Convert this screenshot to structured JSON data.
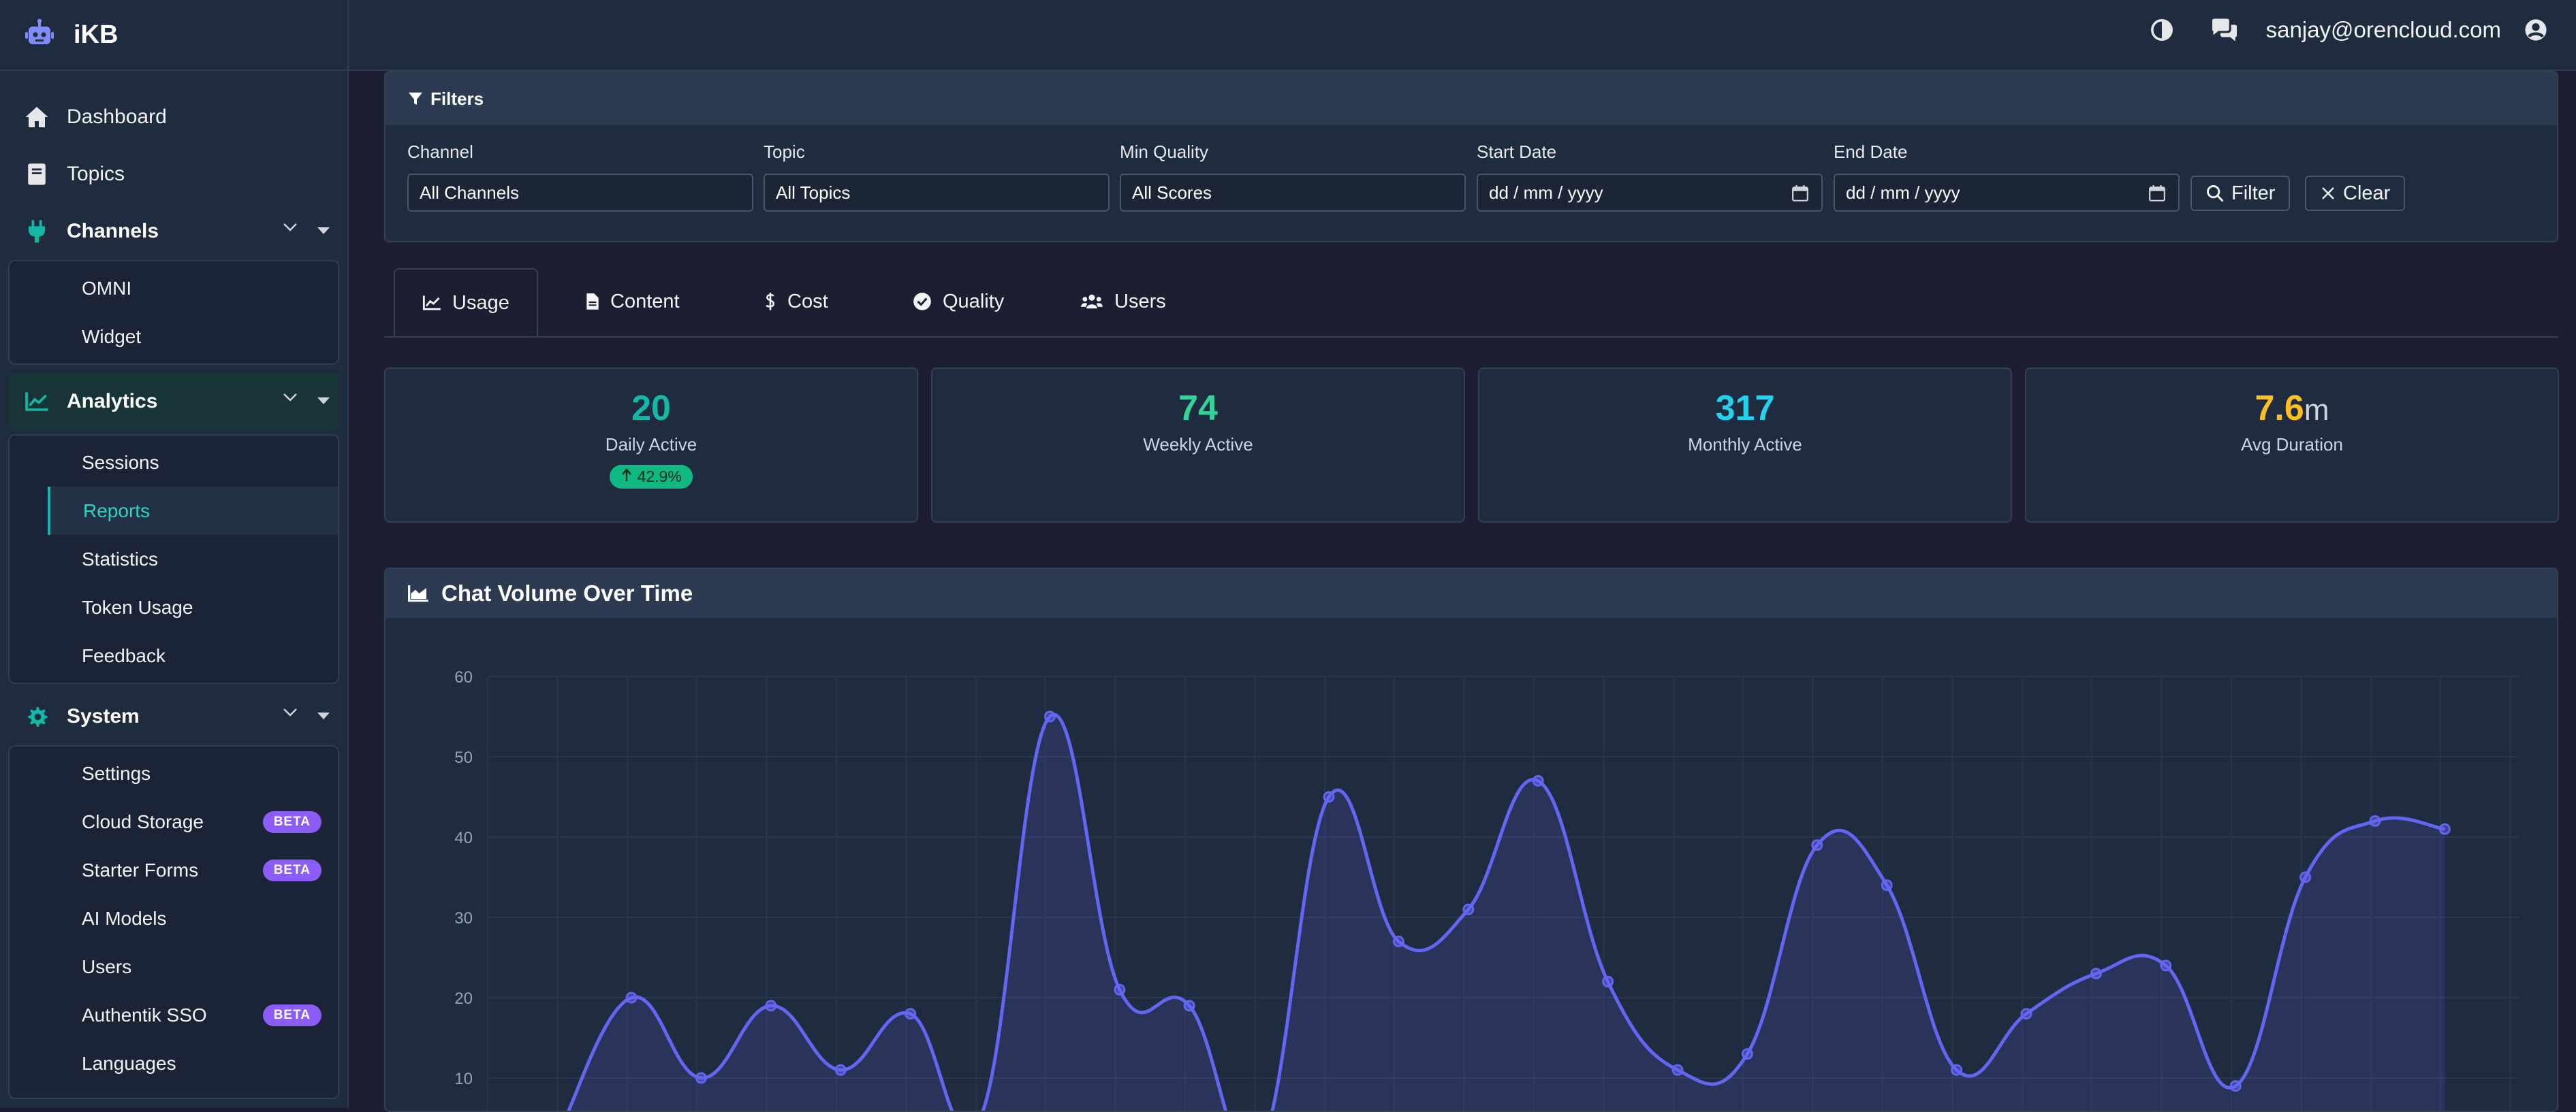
{
  "app": {
    "name": "iKB"
  },
  "sidebar": {
    "dashboard": "Dashboard",
    "topics": "Topics",
    "channels": {
      "label": "Channels",
      "items": [
        "OMNI",
        "Widget"
      ]
    },
    "analytics": {
      "label": "Analytics",
      "items": [
        "Sessions",
        "Reports",
        "Statistics",
        "Token Usage",
        "Feedback"
      ],
      "active": "Reports"
    },
    "system": {
      "label": "System",
      "items": [
        {
          "label": "Settings",
          "badge": ""
        },
        {
          "label": "Cloud Storage",
          "badge": "BETA"
        },
        {
          "label": "Starter Forms",
          "badge": "BETA"
        },
        {
          "label": "AI Models",
          "badge": ""
        },
        {
          "label": "Users",
          "badge": ""
        },
        {
          "label": "Authentik SSO",
          "badge": "BETA"
        },
        {
          "label": "Languages",
          "badge": ""
        }
      ]
    }
  },
  "header": {
    "email": "sanjay@orencloud.com",
    "icons": [
      "contrast-icon",
      "chat-icon",
      "user-circle-icon"
    ]
  },
  "filters": {
    "title": "Filters",
    "channel": {
      "label": "Channel",
      "value": "All Channels"
    },
    "topic": {
      "label": "Topic",
      "value": "All Topics"
    },
    "quality": {
      "label": "Min Quality",
      "value": "All Scores"
    },
    "start": {
      "label": "Start Date",
      "value": "dd / mm / yyyy"
    },
    "end": {
      "label": "End Date",
      "value": "dd / mm / yyyy"
    },
    "filter_btn": "Filter",
    "clear_btn": "Clear"
  },
  "tabs": [
    "Usage",
    "Content",
    "Cost",
    "Quality",
    "Users"
  ],
  "stats": [
    {
      "value": "20",
      "unit": "",
      "label": "Daily Active",
      "change": "42.9%",
      "color": "#14b8a6"
    },
    {
      "value": "74",
      "unit": "",
      "label": "Weekly Active",
      "change": "",
      "color": "#34d399"
    },
    {
      "value": "317",
      "unit": "",
      "label": "Monthly Active",
      "change": "",
      "color": "#22d3ee"
    },
    {
      "value": "7.6",
      "unit": "m",
      "label": "Avg Duration",
      "change": "",
      "color": "#fbbf24"
    }
  ],
  "chart_data": {
    "type": "area",
    "title": "Chat Volume Over Time",
    "ylim": [
      0,
      60
    ],
    "yticks": [
      "10",
      "20",
      "30",
      "40",
      "50",
      "60"
    ],
    "line_color": "#6366f1",
    "values": [
      4,
      20,
      10,
      19,
      11,
      18,
      5,
      55,
      21,
      19,
      1,
      45,
      27,
      31,
      47,
      22,
      11,
      13,
      39,
      34,
      11,
      18,
      23,
      24,
      9,
      35,
      42,
      41
    ],
    "x_start_value": 3
  }
}
